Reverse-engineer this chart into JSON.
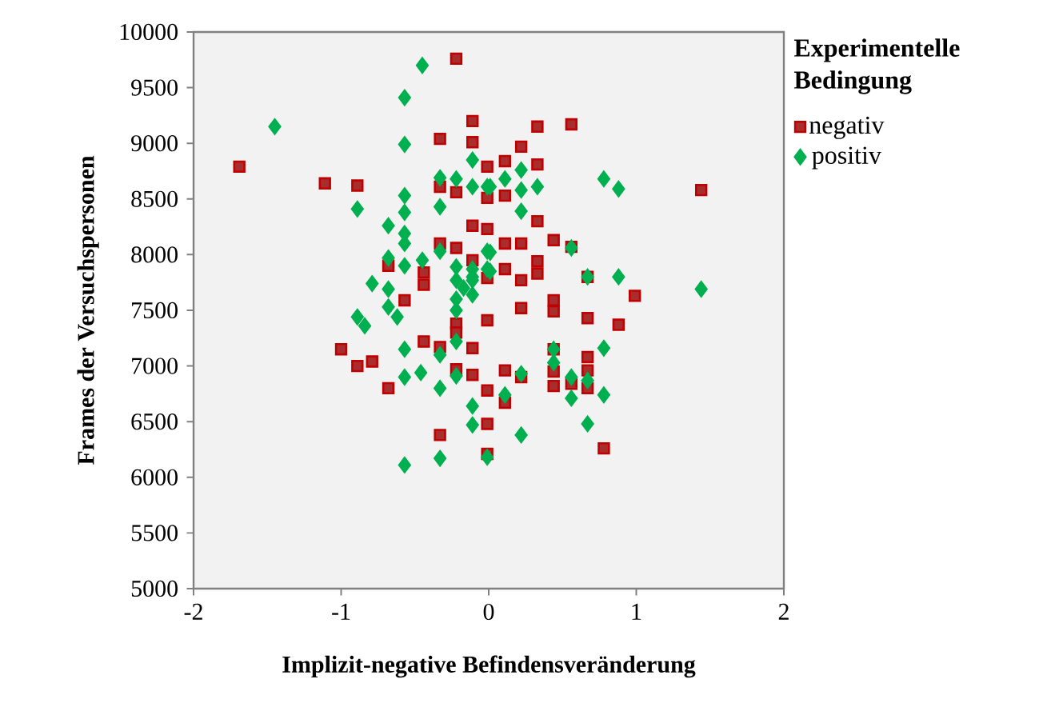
{
  "chart_data": {
    "type": "scatter",
    "xlabel": "Implizit-negative Befindensveränderung",
    "ylabel": "Frames der Versuchspersonen",
    "legend_title": "Experimentelle Bedingung",
    "legend": "top right",
    "grid": false,
    "xlim": [
      -2,
      2
    ],
    "xticks": [
      -2,
      -1,
      0,
      1,
      2
    ],
    "ylim": [
      5000,
      10000
    ],
    "yticks": [
      5000,
      5500,
      6000,
      6500,
      7000,
      7500,
      8000,
      8500,
      9000,
      9500,
      10000
    ],
    "series": [
      {
        "name": "negativ",
        "color": "#c00000",
        "marker": "square",
        "x": [
          -0.22,
          -1.69,
          -1.11,
          -0.89,
          -0.33,
          -0.11,
          -0.11,
          -0.01,
          -0.33,
          -0.22,
          -0.01,
          -0.11,
          -0.01,
          -0.33,
          -0.22,
          -0.11,
          -0.01,
          -0.68,
          -0.44,
          -0.44,
          -0.57,
          -0.01,
          -0.22,
          -0.22,
          0.33,
          0.56,
          0.22,
          0.11,
          0.33,
          0.11,
          0.33,
          0.11,
          0.22,
          0.44,
          0.56,
          0.33,
          0.33,
          0.11,
          0.22,
          0.67,
          0.99,
          1.44,
          0.22,
          0.44,
          0.44,
          0.67,
          0.88,
          -1.0,
          -0.89,
          -0.79,
          -0.68,
          -0.44,
          -0.33,
          -0.11,
          -0.22,
          -0.11,
          -0.01,
          -0.01,
          -0.33,
          -0.01,
          0.11,
          0.22,
          0.11,
          0.44,
          0.44,
          0.44,
          0.67,
          0.67,
          0.67,
          0.56,
          0.78
        ],
        "values": [
          9760,
          8790,
          8640,
          8620,
          9040,
          9010,
          9200,
          8790,
          8610,
          8560,
          8510,
          8260,
          8230,
          8100,
          8060,
          7950,
          7790,
          7900,
          7840,
          7730,
          7590,
          7410,
          7380,
          7300,
          9150,
          9170,
          8970,
          8840,
          8810,
          8530,
          8300,
          8100,
          8100,
          8130,
          8070,
          7940,
          7830,
          7870,
          7770,
          7800,
          7630,
          8580,
          7520,
          7590,
          7490,
          7430,
          7370,
          7150,
          7000,
          7040,
          6800,
          7220,
          7170,
          7160,
          6970,
          6920,
          6780,
          6480,
          6380,
          6210,
          6960,
          6900,
          6670,
          7150,
          6950,
          6820,
          7080,
          6960,
          6800,
          6840,
          6260
        ]
      },
      {
        "name": "positiv",
        "color": "#00b050",
        "marker": "diamond",
        "x": [
          -0.45,
          -0.57,
          -1.45,
          -0.57,
          -0.11,
          -0.33,
          -0.22,
          -0.11,
          -0.01,
          -0.57,
          -0.57,
          -0.33,
          -0.89,
          -0.68,
          -0.57,
          -0.57,
          -0.33,
          -0.01,
          -0.68,
          -0.57,
          -0.45,
          -0.22,
          -0.11,
          -0.01,
          -0.22,
          -0.11,
          -0.17,
          -0.79,
          -0.68,
          -0.22,
          -0.11,
          -0.68,
          -0.22,
          -0.89,
          -0.84,
          -0.62,
          0.01,
          0.11,
          0.22,
          0.33,
          0.22,
          0.22,
          0.78,
          0.88,
          0.56,
          0.01,
          0.01,
          -0.11,
          0.67,
          0.88,
          1.44,
          -0.57,
          -0.33,
          -0.22,
          -0.57,
          -0.46,
          -0.22,
          -0.33,
          -0.11,
          -0.11,
          -0.01,
          -0.33,
          -0.57,
          0.22,
          0.11,
          0.22,
          0.44,
          0.44,
          0.56,
          0.67,
          0.78,
          0.78,
          0.56,
          0.67
        ],
        "values": [
          9700,
          9410,
          9150,
          8990,
          8850,
          8690,
          8680,
          8610,
          8610,
          8530,
          8380,
          8430,
          8410,
          8260,
          8190,
          8100,
          8030,
          8030,
          7970,
          7900,
          7950,
          7890,
          7870,
          7870,
          7770,
          7770,
          7700,
          7740,
          7690,
          7600,
          7640,
          7530,
          7500,
          7440,
          7360,
          7440,
          8610,
          8680,
          8760,
          8610,
          8580,
          8390,
          8680,
          8590,
          8060,
          8020,
          7850,
          7800,
          7800,
          7800,
          7690,
          7150,
          7100,
          7220,
          6900,
          6940,
          6910,
          6800,
          6640,
          6470,
          6180,
          6170,
          6110,
          6930,
          6740,
          6380,
          7150,
          7030,
          6900,
          6870,
          7160,
          6740,
          6710,
          6480
        ]
      }
    ]
  }
}
